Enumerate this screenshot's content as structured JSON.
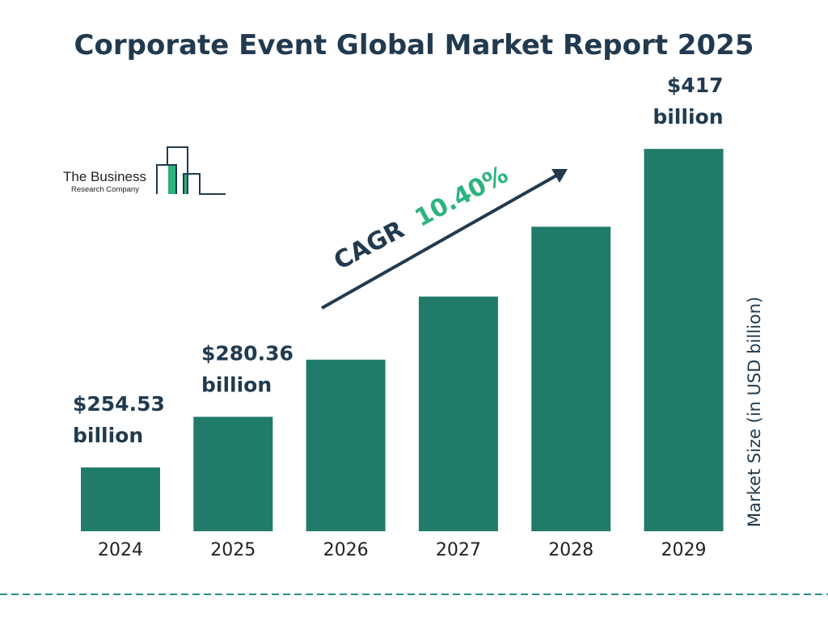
{
  "chart_data": {
    "type": "bar",
    "title": "Corporate Event Global Market Report 2025",
    "ylabel": "Market Size (in USD billion)",
    "xlabel": "",
    "categories": [
      "2024",
      "2025",
      "2026",
      "2027",
      "2028",
      "2029"
    ],
    "values": [
      254.53,
      280.36,
      309.5,
      341.7,
      377.3,
      417
    ],
    "data_labels": [
      {
        "index": 0,
        "value": "$254.53",
        "unit": "billion"
      },
      {
        "index": 1,
        "value": "$280.36",
        "unit": "billion"
      },
      {
        "index": 5,
        "value": "$417",
        "unit": "billion"
      }
    ],
    "annotation": {
      "label": "CAGR",
      "value": "10.40%"
    },
    "ylim": [
      222,
      430
    ],
    "grid": false,
    "legend": "none",
    "colors": {
      "bar": "#217b6b",
      "title": "#213a4f",
      "cagr_value": "#2db37f",
      "divider": "#2a8c8c"
    }
  },
  "logo": {
    "line1": "The Business",
    "line2": "Research Company"
  }
}
